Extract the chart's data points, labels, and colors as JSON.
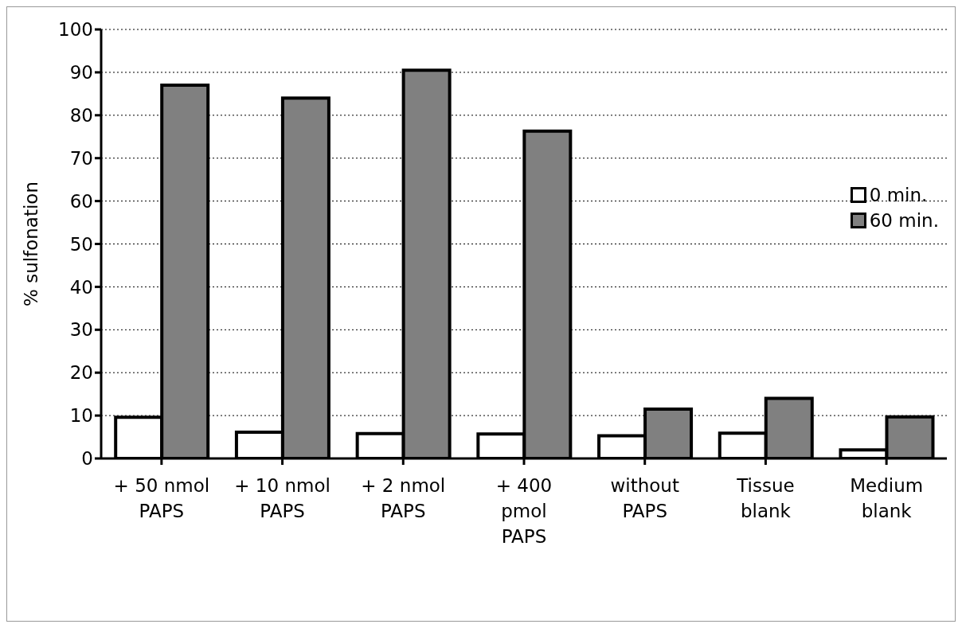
{
  "chart_data": {
    "type": "bar",
    "ylabel": "% sulfonation",
    "categories": [
      "+ 50 nmol\nPAPS",
      "+ 10 nmol\nPAPS",
      "+ 2 nmol\nPAPS",
      "+ 400\npmol\nPAPS",
      "without\nPAPS",
      "Tissue\nblank",
      "Medium\nblank"
    ],
    "series": [
      {
        "name": "0 min.",
        "color": "#ffffff",
        "values": [
          9.6,
          6.1,
          5.8,
          5.7,
          5.3,
          5.9,
          2.0
        ]
      },
      {
        "name": "60 min.",
        "color": "#808080",
        "values": [
          87,
          84,
          90.5,
          76.3,
          11.5,
          14,
          9.7
        ]
      }
    ],
    "ylim": [
      0,
      100
    ],
    "yticks": [
      0,
      10,
      20,
      30,
      40,
      50,
      60,
      70,
      80,
      90,
      100
    ],
    "grid": "y",
    "legend": "right"
  }
}
